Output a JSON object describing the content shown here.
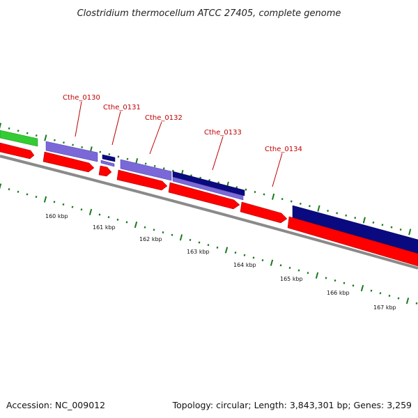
{
  "title": "Clostridium thermocellum ATCC 27405, complete genome",
  "footer": {
    "accession": "Accession: NC_009012",
    "summary": "Topology: circular; Length: 3,843,301 bp; Genes: 3,259"
  },
  "colors": {
    "background": "#ffffff",
    "gene_label": "#c00000",
    "cds_forward": "#ff0000",
    "gene_light_purple": "#7b68d8",
    "gene_dark_blue": "#0a0a80",
    "gene_green": "#33cc33",
    "backbone": "#808080",
    "tick_green": "#1a7a1a"
  },
  "gene_labels": [
    "Cthe_0130",
    "Cthe_0131",
    "Cthe_0132",
    "Cthe_0133",
    "Cthe_0134"
  ],
  "kbp_labels": [
    "160 kbp",
    "161 kbp",
    "162 kbp",
    "163 kbp",
    "164 kbp",
    "165 kbp",
    "166 kbp",
    "167 kbp"
  ]
}
